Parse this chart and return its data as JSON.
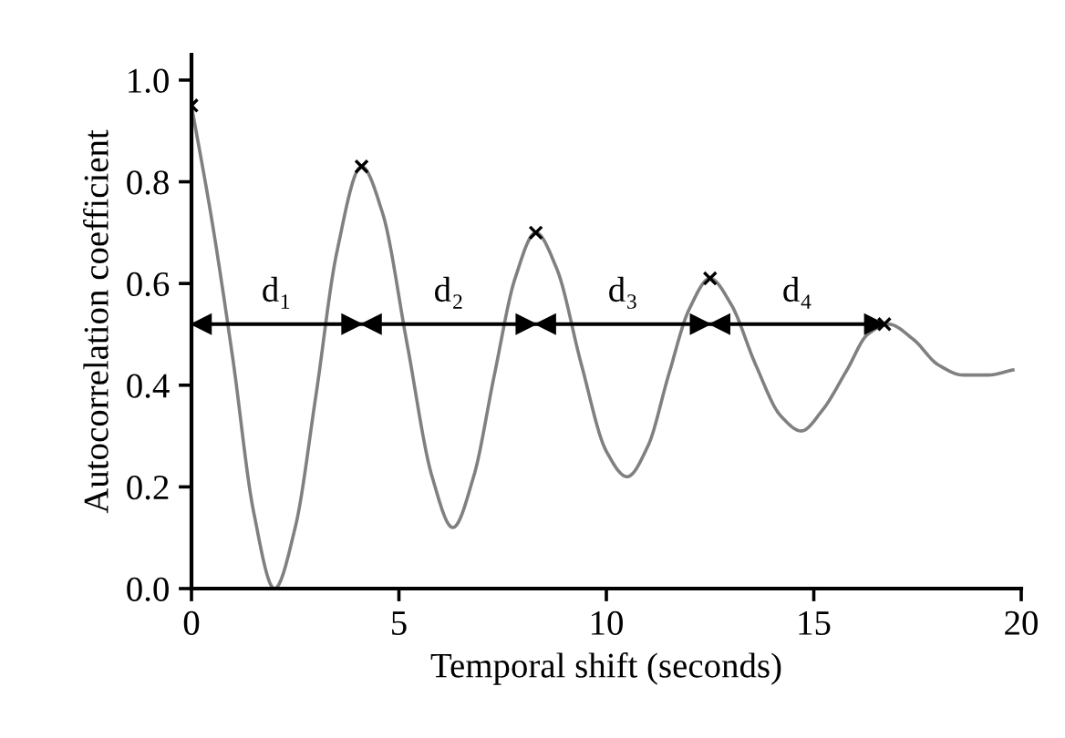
{
  "chart_data": {
    "type": "line",
    "xlabel": "Temporal shift (seconds)",
    "ylabel": "Autocorrelation coefficient",
    "xlim": [
      0,
      20
    ],
    "xticks": [
      0,
      5,
      10,
      15,
      20
    ],
    "ylim": [
      0,
      1.05
    ],
    "yticks": [
      {
        "value": 0,
        "label": "0.0"
      },
      {
        "value": 0.2,
        "label": "0.2"
      },
      {
        "value": 0.4,
        "label": "0.4"
      },
      {
        "value": 0.6,
        "label": "0.6"
      },
      {
        "value": 0.8,
        "label": "0.8"
      },
      {
        "value": 1.0,
        "label": "1.0"
      }
    ],
    "grid": false,
    "legend": false,
    "series": [
      {
        "type": "line",
        "color": "#808080",
        "marker": "none",
        "line_style": "solid",
        "x": [
          0,
          0.5,
          1.0,
          1.5,
          2.0,
          2.5,
          3.0,
          3.5,
          4.1,
          4.6,
          5.2,
          5.8,
          6.3,
          6.8,
          7.3,
          7.8,
          8.3,
          8.8,
          9.4,
          10.0,
          10.5,
          11.0,
          11.5,
          12.0,
          12.5,
          13.0,
          13.6,
          14.2,
          14.7,
          15.2,
          15.8,
          16.3,
          16.8,
          17.4,
          18.0,
          18.6,
          19.2,
          19.8
        ],
        "values": [
          0.95,
          0.72,
          0.45,
          0.15,
          0.0,
          0.12,
          0.38,
          0.66,
          0.83,
          0.74,
          0.48,
          0.22,
          0.12,
          0.22,
          0.42,
          0.61,
          0.7,
          0.63,
          0.44,
          0.27,
          0.22,
          0.28,
          0.42,
          0.55,
          0.61,
          0.56,
          0.44,
          0.34,
          0.31,
          0.35,
          0.43,
          0.5,
          0.52,
          0.49,
          0.44,
          0.42,
          0.42,
          0.43
        ]
      },
      {
        "type": "scatter",
        "color": "#000000",
        "marker": "cross",
        "x": [
          0,
          4.1,
          8.3,
          12.5,
          16.7
        ],
        "values": [
          0.95,
          0.83,
          0.7,
          0.61,
          0.52
        ]
      },
      {
        "type": "line",
        "marker": "none",
        "line_style": "solid",
        "color": "#000000",
        "x": [
          0,
          4.1,
          8.3,
          12.5,
          16.7
        ],
        "values": [
          0.52,
          0.52,
          0.52,
          0.52,
          0.52
        ]
      }
    ],
    "annotations": [
      "d₁",
      "d₂",
      "d₃",
      "d₄"
    ]
  }
}
